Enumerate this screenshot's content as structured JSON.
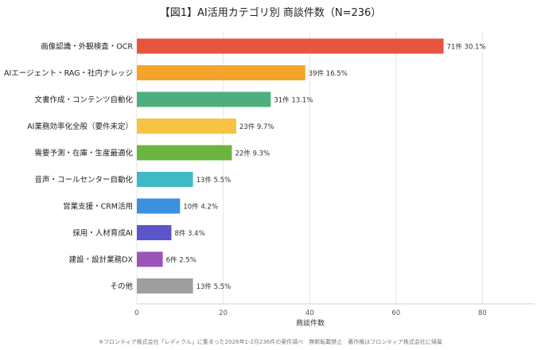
{
  "chart_data": {
    "type": "bar",
    "orientation": "horizontal",
    "title": "【図1】AI活用カテゴリ別 商談件数（N=236）",
    "xlabel": "商談件数",
    "ylabel": "",
    "xlim": [
      0,
      90
    ],
    "xticks": [
      0,
      20,
      40,
      60,
      80
    ],
    "grid": "vertical",
    "categories": [
      "画像認識・外観検査・OCR",
      "AIエージェント・RAG・社内ナレッジ",
      "文書作成・コンテンツ自動化",
      "AI業務効率化全般（要件未定）",
      "需要予測・在庫・生産最適化",
      "音声・コールセンター自動化",
      "営業支援・CRM活用",
      "採用・人材育成AI",
      "建設・設計業務DX",
      "その他"
    ],
    "values": [
      71,
      39,
      31,
      23,
      22,
      13,
      10,
      8,
      6,
      13
    ],
    "data_labels": [
      "71件  30.1%",
      "39件  16.5%",
      "31件  13.1%",
      "23件  9.7%",
      "22件  9.3%",
      "13件  5.5%",
      "10件  4.2%",
      "8件  3.4%",
      "6件  2.5%",
      "13件  5.5%"
    ],
    "colors": [
      "#e8553f",
      "#f5a32a",
      "#4caf7d",
      "#f6c342",
      "#6db33f",
      "#3fb9c6",
      "#3d8fe0",
      "#5a55c8",
      "#9b55b8",
      "#9e9e9e"
    ]
  },
  "footnote": "※フロンティア株式会社「レディクル」に集まった2026年1-2月236件の案件調べ　無断転載禁止　著作権はフロンティア株式会社に帰属"
}
